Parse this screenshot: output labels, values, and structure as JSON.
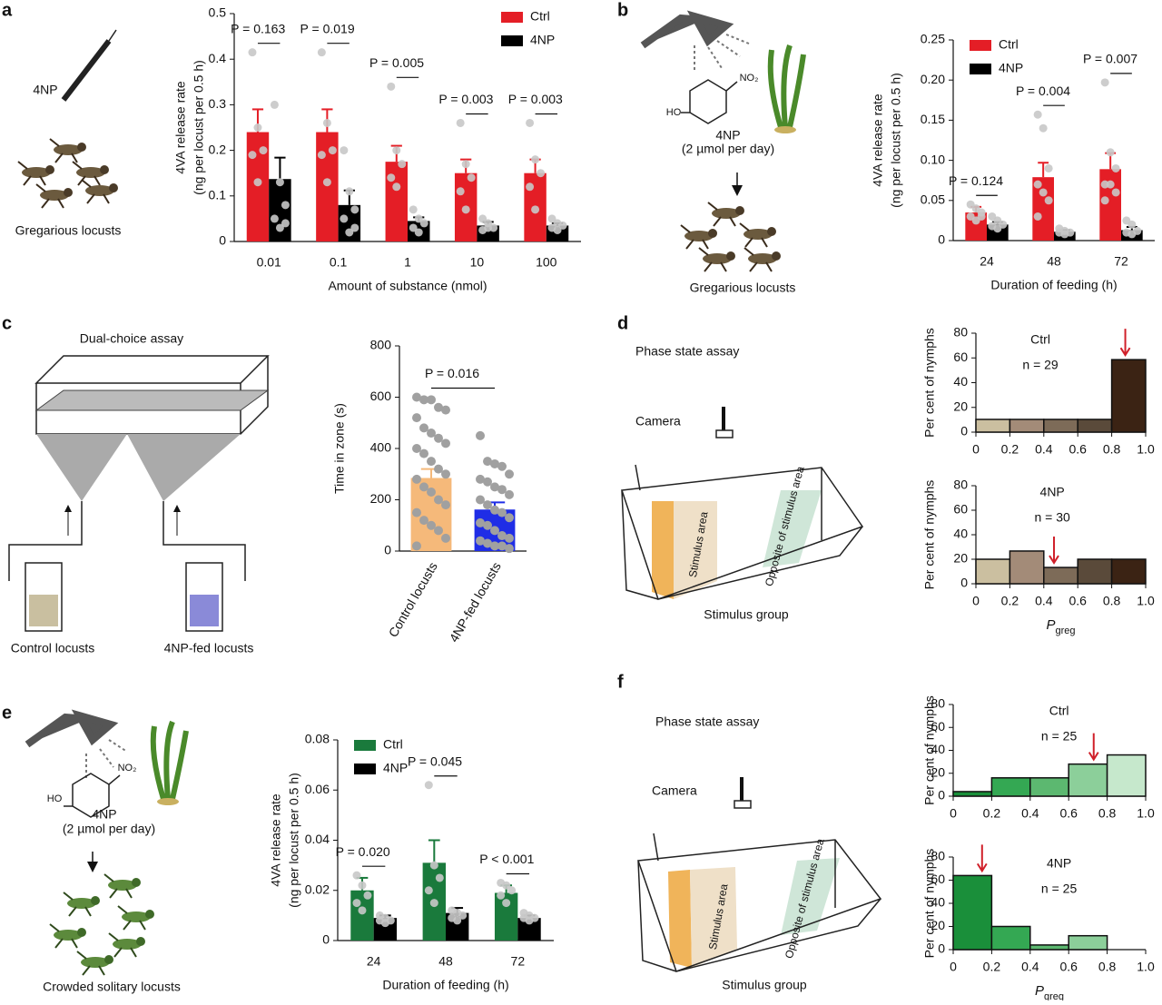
{
  "chart_data": [
    {
      "type": "bar",
      "categories": [
        "0.01",
        "0.1",
        "1",
        "10",
        "100"
      ],
      "series": [
        {
          "name": "Ctrl",
          "color": "#e41e26",
          "values": [
            0.24,
            0.24,
            0.175,
            0.15,
            0.15
          ],
          "errors": [
            0.05,
            0.05,
            0.035,
            0.03,
            0.03
          ],
          "points": [
            [
              0.415,
              0.25,
              0.2,
              0.19,
              0.13
            ],
            [
              0.415,
              0.26,
              0.2,
              0.19,
              0.13
            ],
            [
              0.34,
              0.2,
              0.17,
              0.14,
              0.12
            ],
            [
              0.26,
              0.17,
              0.14,
              0.11,
              0.07
            ],
            [
              0.26,
              0.18,
              0.15,
              0.12,
              0.07
            ]
          ]
        },
        {
          "name": "4NP",
          "color": "#000000",
          "values": [
            0.137,
            0.08,
            0.045,
            0.035,
            0.035
          ],
          "errors": [
            0.047,
            0.032,
            0.008,
            0.008,
            0.005
          ],
          "points": [
            [
              0.3,
              0.13,
              0.08,
              0.05,
              0.03,
              0.04
            ],
            [
              0.2,
              0.11,
              0.07,
              0.05,
              0.02,
              0.03
            ],
            [
              0.07,
              0.05,
              0.04,
              0.03,
              0.02
            ],
            [
              0.05,
              0.04,
              0.03,
              0.025,
              0.03
            ],
            [
              0.05,
              0.04,
              0.035,
              0.03,
              0.025
            ]
          ]
        }
      ],
      "point_color": "#c8c8c8",
      "annotations": [
        "P = 0.163",
        "P = 0.019",
        "P = 0.005",
        "P = 0.003",
        "P = 0.003"
      ],
      "ylim": [
        0,
        0.5
      ],
      "yticks": [
        0,
        0.1,
        0.2,
        0.3,
        0.4,
        0.5
      ],
      "ylabel": [
        "4VA release rate",
        "(ng per locust per 0.5 h)"
      ],
      "xlabel": "Amount of substance (nmol)",
      "legend": "upper right"
    },
    {
      "type": "bar",
      "categories": [
        "24",
        "48",
        "72"
      ],
      "series": [
        {
          "name": "Ctrl",
          "color": "#e41e26",
          "values": [
            0.035,
            0.079,
            0.089
          ],
          "errors": [
            0.007,
            0.018,
            0.02
          ],
          "points": [
            [
              0.045,
              0.04,
              0.035,
              0.03,
              0.025,
              0.03
            ],
            [
              0.157,
              0.14,
              0.09,
              0.07,
              0.06,
              0.05,
              0.03
            ],
            [
              0.197,
              0.11,
              0.09,
              0.07,
              0.07,
              0.06,
              0.05
            ]
          ]
        },
        {
          "name": "4NP",
          "color": "#000000",
          "values": [
            0.02,
            0.011,
            0.013
          ],
          "errors": [
            0.003,
            0.002,
            0.004
          ],
          "points": [
            [
              0.03,
              0.025,
              0.02,
              0.018,
              0.015
            ],
            [
              0.015,
              0.012,
              0.01,
              0.01,
              0.008
            ],
            [
              0.025,
              0.02,
              0.012,
              0.01,
              0.008
            ]
          ]
        }
      ],
      "point_color": "#c8c8c8",
      "annotations": [
        "P = 0.124",
        "P = 0.004",
        "P = 0.007"
      ],
      "ylim": [
        0,
        0.25
      ],
      "yticks": [
        0,
        0.05,
        {
          "value": 0.1,
          "label": "0.10"
        },
        0.15,
        {
          "value": 0.2,
          "label": "0.20"
        },
        0.25
      ],
      "ylabel": [
        "4VA release rate",
        "(ng per locust per 0.5 h)"
      ],
      "xlabel": "Duration of feeding (h)",
      "legend": "upper left"
    },
    {
      "type": "bar",
      "categories": [
        "Control locusts",
        "4NP-fed locusts"
      ],
      "values": [
        285,
        162
      ],
      "errors": [
        35,
        28
      ],
      "colors": [
        "#f5b97a",
        "#1f2de6"
      ],
      "points": [
        [
          600,
          590,
          590,
          560,
          550,
          520,
          480,
          460,
          440,
          420,
          400,
          380,
          350,
          320,
          300,
          280,
          250,
          230,
          200,
          180,
          150,
          120,
          100,
          80,
          50,
          20
        ],
        [
          450,
          350,
          340,
          330,
          300,
          280,
          270,
          250,
          240,
          220,
          200,
          180,
          160,
          150,
          130,
          110,
          100,
          80,
          60,
          50,
          40,
          30,
          20,
          20,
          10
        ]
      ],
      "point_color": "#a0a0a0",
      "annotations": [
        "P = 0.016"
      ],
      "ylim": [
        0,
        800
      ],
      "yticks": [
        0,
        200,
        400,
        600,
        800
      ],
      "ylabel": [
        "Time in zone (s)"
      ]
    },
    {
      "type": "histogram",
      "bins": [
        0,
        0.2,
        0.4,
        0.6,
        0.8,
        1
      ],
      "values": [
        10.3,
        10.3,
        10.3,
        10.3,
        58.6
      ],
      "colors": [
        "#cbbfa0",
        "#a38b78",
        "#7d6b58",
        "#5a4a3a",
        "#3b2314"
      ],
      "marker": 0.88,
      "marker_color": "#d0202a",
      "annotations": [
        "Ctrl",
        "n = 29"
      ],
      "xlim": [
        0,
        1
      ],
      "xticks": [
        0,
        0.2,
        0.4,
        0.6,
        0.8,
        {
          "value": 1,
          "label": "1.0"
        }
      ],
      "ylim": [
        0,
        80
      ],
      "yticks": [
        0,
        20,
        40,
        60,
        80
      ],
      "ylabel": [
        "Per cent of nymphs"
      ]
    },
    {
      "type": "histogram",
      "bins": [
        0,
        0.2,
        0.4,
        0.6,
        0.8,
        1
      ],
      "values": [
        20,
        26.7,
        13.3,
        20,
        20
      ],
      "colors": [
        "#cbbfa0",
        "#a38b78",
        "#7d6b58",
        "#5a4a3a",
        "#3b2314"
      ],
      "marker": 0.46,
      "marker_color": "#d0202a",
      "annotations": [
        "4NP",
        "n = 30"
      ],
      "xlim": [
        0,
        1
      ],
      "xticks": [
        0,
        0.2,
        0.4,
        0.6,
        0.8,
        {
          "value": 1,
          "label": "1.0"
        }
      ],
      "ylim": [
        0,
        80
      ],
      "yticks": [
        0,
        20,
        40,
        60,
        80
      ],
      "ylabel": [
        "Per cent of nymphs"
      ],
      "xlabel": {
        "text": "P",
        "sub": "greg"
      }
    },
    {
      "type": "bar",
      "categories": [
        "24",
        "48",
        "72"
      ],
      "series": [
        {
          "name": "Ctrl",
          "color": "#1a7a3c",
          "values": [
            0.02,
            0.031,
            0.019
          ],
          "errors": [
            0.005,
            0.009,
            0.003
          ],
          "points": [
            [
              0.026,
              0.022,
              0.018,
              0.015,
              0.012
            ],
            [
              0.062,
              0.03,
              0.025,
              0.02,
              0.015
            ],
            [
              0.023,
              0.022,
              0.02,
              0.018,
              0.015
            ]
          ]
        },
        {
          "name": "4NP",
          "color": "#000000",
          "values": [
            0.009,
            0.011,
            0.009
          ],
          "errors": [
            0.001,
            0.002,
            0.001
          ],
          "points": [
            [
              0.01,
              0.009,
              0.008,
              0.008,
              0.007
            ],
            [
              0.012,
              0.011,
              0.01,
              0.009,
              0.008
            ],
            [
              0.011,
              0.01,
              0.009,
              0.009,
              0.008
            ]
          ]
        }
      ],
      "point_color": "#c8c8c8",
      "annotations": [
        "P = 0.020",
        "P = 0.045",
        "P < 0.001"
      ],
      "ylim": [
        0,
        0.08
      ],
      "yticks": [
        0,
        0.02,
        0.04,
        0.06,
        0.08
      ],
      "ylabel": [
        "4VA release rate",
        "(ng per locust per 0.5 h)"
      ],
      "xlabel": "Duration of feeding (h)",
      "legend": "upper left"
    },
    {
      "type": "histogram",
      "bins": [
        0,
        0.2,
        0.4,
        0.6,
        0.8,
        1
      ],
      "values": [
        4,
        16,
        16,
        28,
        36
      ],
      "colors": [
        "#1a8f3a",
        "#34a853",
        "#5cb870",
        "#8ccf9a",
        "#c6e8cc"
      ],
      "marker": 0.73,
      "marker_color": "#d0202a",
      "annotations": [
        "Ctrl",
        "n = 25"
      ],
      "xlim": [
        0,
        1
      ],
      "xticks": [
        0,
        0.2,
        0.4,
        0.6,
        0.8,
        {
          "value": 1,
          "label": "1.0"
        }
      ],
      "ylim": [
        0,
        80
      ],
      "yticks": [
        0,
        20,
        40,
        60,
        80
      ],
      "ylabel": [
        "Per cent of nymphs"
      ]
    },
    {
      "type": "histogram",
      "bins": [
        0,
        0.2,
        0.4,
        0.6,
        0.8,
        1
      ],
      "values": [
        64,
        20,
        4,
        12,
        0
      ],
      "colors": [
        "#1a8f3a",
        "#34a853",
        "#5cb870",
        "#8ccf9a",
        "#c6e8cc"
      ],
      "marker": 0.15,
      "marker_color": "#d0202a",
      "annotations": [
        "4NP",
        "n = 25"
      ],
      "xlim": [
        0,
        1
      ],
      "xticks": [
        0,
        0.2,
        0.4,
        0.6,
        0.8,
        {
          "value": 1,
          "label": "1.0"
        }
      ],
      "ylim": [
        0,
        80
      ],
      "yticks": [
        0,
        20,
        40,
        60,
        80
      ],
      "ylabel": [
        "Per cent of nymphs"
      ],
      "xlabel": {
        "text": "P",
        "sub": "greg"
      }
    }
  ],
  "diagrams": {
    "a": [
      "a",
      "4NP",
      "Gregarious locusts"
    ],
    "b": [
      "b",
      "HO",
      "NO₂",
      "4NP",
      "(2 µmol per day)",
      "Gregarious locusts"
    ],
    "c": [
      "c",
      "Dual-choice assay",
      "Control locusts",
      "4NP-fed locusts"
    ],
    "d": [
      "d",
      "Phase state assay",
      "Camera",
      "Stimulus area",
      "Opposite of stimulus area",
      "Stimulus group"
    ],
    "e": [
      "e",
      "HO",
      "NO₂",
      "4NP",
      "(2 µmol per day)",
      "Crowded solitary locusts"
    ],
    "f": [
      "f",
      "Phase state assay",
      "Camera",
      "Stimulus area",
      "Opposite of stimulus area",
      "Stimulus group"
    ]
  }
}
